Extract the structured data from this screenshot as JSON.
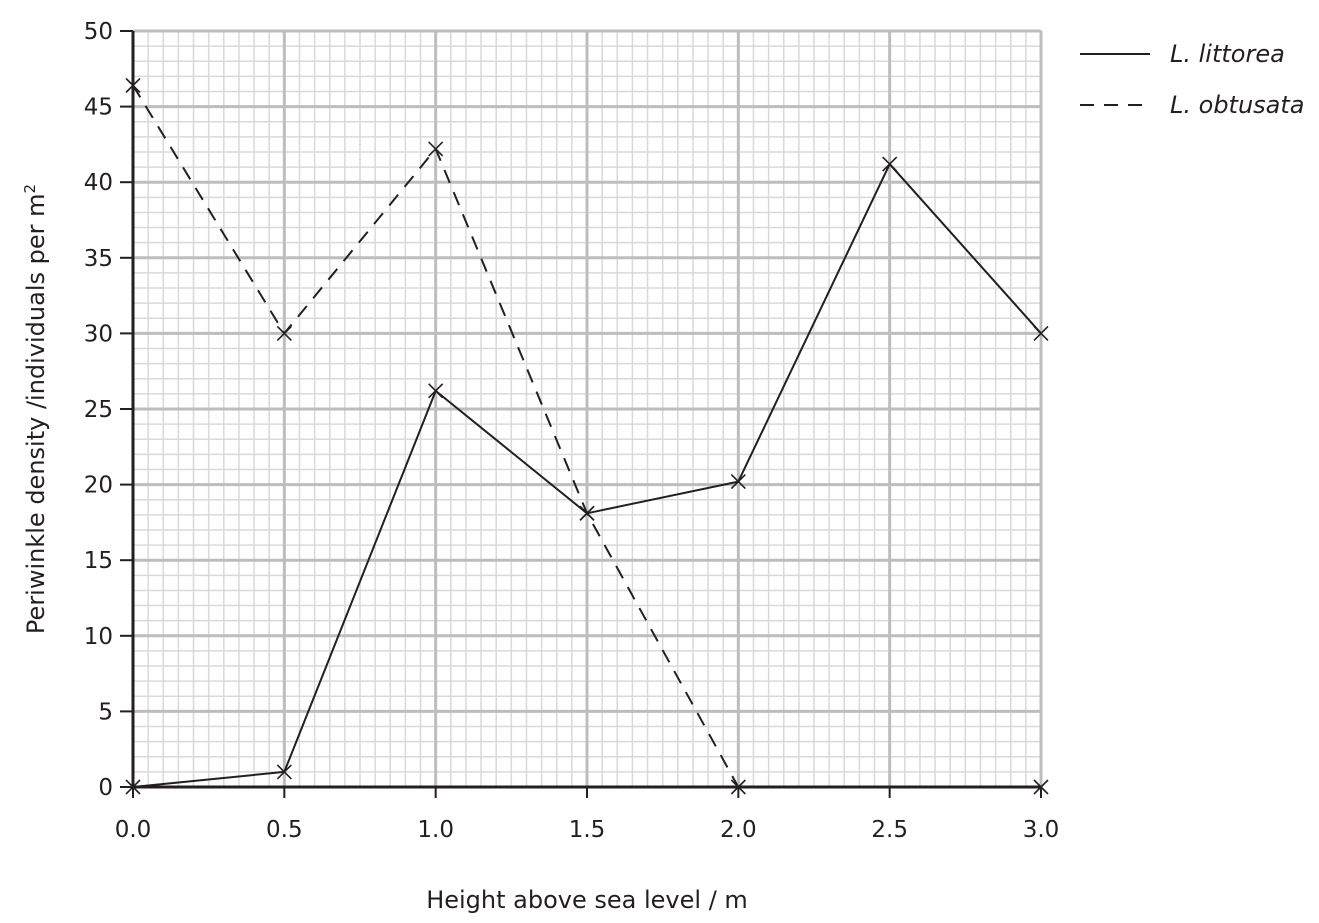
{
  "chart_data": {
    "type": "line",
    "xlabel": "Height above sea level / m",
    "ylabel": "Periwinkle density /individuals per m",
    "ylabel_superscript": "2",
    "xlim": [
      0,
      3
    ],
    "ylim": [
      0,
      50
    ],
    "x_ticks": [
      "0.0",
      "0.5",
      "1.0",
      "1.5",
      "2.0",
      "2.5",
      "3.0"
    ],
    "y_ticks": [
      "0",
      "5",
      "10",
      "15",
      "20",
      "25",
      "30",
      "35",
      "40",
      "45",
      "50"
    ],
    "grid": true,
    "legend_position": "top-right",
    "series": [
      {
        "name": "L. littorea",
        "style": "solid",
        "x": [
          0.0,
          0.5,
          1.0,
          1.5,
          2.0,
          2.5,
          3.0
        ],
        "y": [
          0,
          1,
          26.2,
          18.1,
          20.2,
          41.2,
          30
        ]
      },
      {
        "name": "L. obtusata",
        "style": "dashed",
        "x": [
          0.0,
          0.5,
          1.0,
          1.5,
          2.0,
          3.0
        ],
        "y": [
          46.4,
          30,
          42.2,
          18.1,
          0,
          0
        ]
      }
    ],
    "colors": {
      "grid_major": "#bdbdbd",
      "grid_minor": "#d9d9d9",
      "line": "#231f20",
      "axis": "#231f20"
    }
  }
}
